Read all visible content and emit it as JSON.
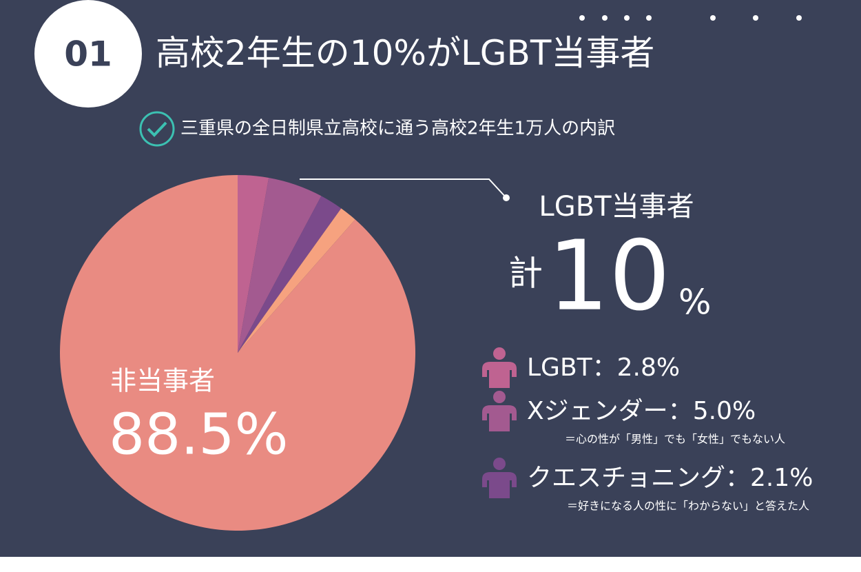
{
  "header": {
    "badge": "01",
    "title": "高校2年生の10%が",
    "title_emphasis": "LGBT当事者",
    "subtitle": "三重県の全日制県立高校に通う高校2年生1万人の内訳"
  },
  "callout": {
    "label": "LGBT当事者",
    "prefix": "計",
    "value": "10",
    "unit": "%"
  },
  "chart_data": {
    "type": "pie",
    "categories": [
      "LGBT",
      "Xジェンダー",
      "クエスチョニング",
      null,
      "非当事者"
    ],
    "values": [
      2.8,
      5.0,
      2.1,
      1.6,
      88.5
    ],
    "value_labels": [
      "2.8%",
      "5.0%",
      "2.1%",
      null,
      "88.5%"
    ],
    "colors": [
      "#bf6391",
      "#a35a90",
      "#7b4a8b",
      "#f6a27f",
      "#e98b82"
    ],
    "label_separator": "：",
    "notes": [
      null,
      "＝心の性が「男性」でも「女性」でもない人",
      "＝好きになる人の性に「わからない」と答えた人",
      null,
      null
    ]
  }
}
